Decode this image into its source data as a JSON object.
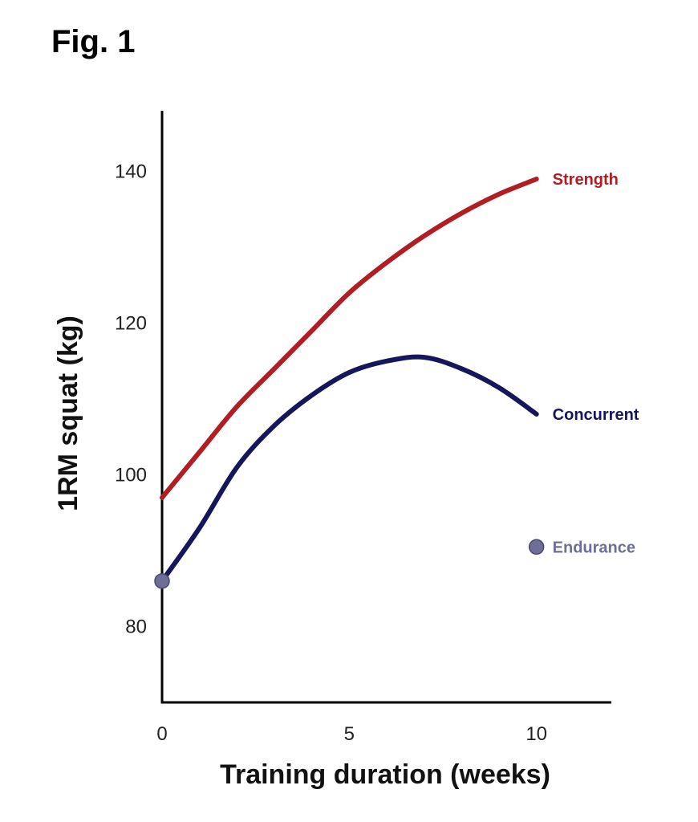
{
  "figure_title": "Fig. 1",
  "colors": {
    "strength": "#b01e23",
    "concurrent": "#16165a",
    "endurance": "#6e6e96",
    "axis": "#000000"
  },
  "chart_data": {
    "type": "line",
    "xlabel": "Training duration (weeks)",
    "ylabel": "1RM squat (kg)",
    "xlim": [
      0,
      12
    ],
    "ylim": [
      70,
      148
    ],
    "x_ticks": [
      0,
      5,
      10
    ],
    "y_ticks": [
      80,
      100,
      120,
      140
    ],
    "series": [
      {
        "name": "Strength",
        "x": [
          0,
          1,
          2,
          3,
          4,
          5,
          6,
          7,
          8,
          9,
          10
        ],
        "values": [
          97,
          103,
          109,
          114,
          119,
          124,
          128,
          131.5,
          134.5,
          137,
          139
        ]
      },
      {
        "name": "Concurrent",
        "x": [
          0,
          1,
          2,
          3,
          4,
          5,
          6,
          7,
          8,
          9,
          10
        ],
        "values": [
          86,
          93,
          101,
          106.5,
          110.5,
          113.5,
          115,
          115.5,
          114,
          111.5,
          108
        ]
      },
      {
        "name": "Endurance",
        "points": [
          {
            "x": 0,
            "y": 86
          },
          {
            "x": 10,
            "y": 90.5
          }
        ]
      }
    ]
  }
}
